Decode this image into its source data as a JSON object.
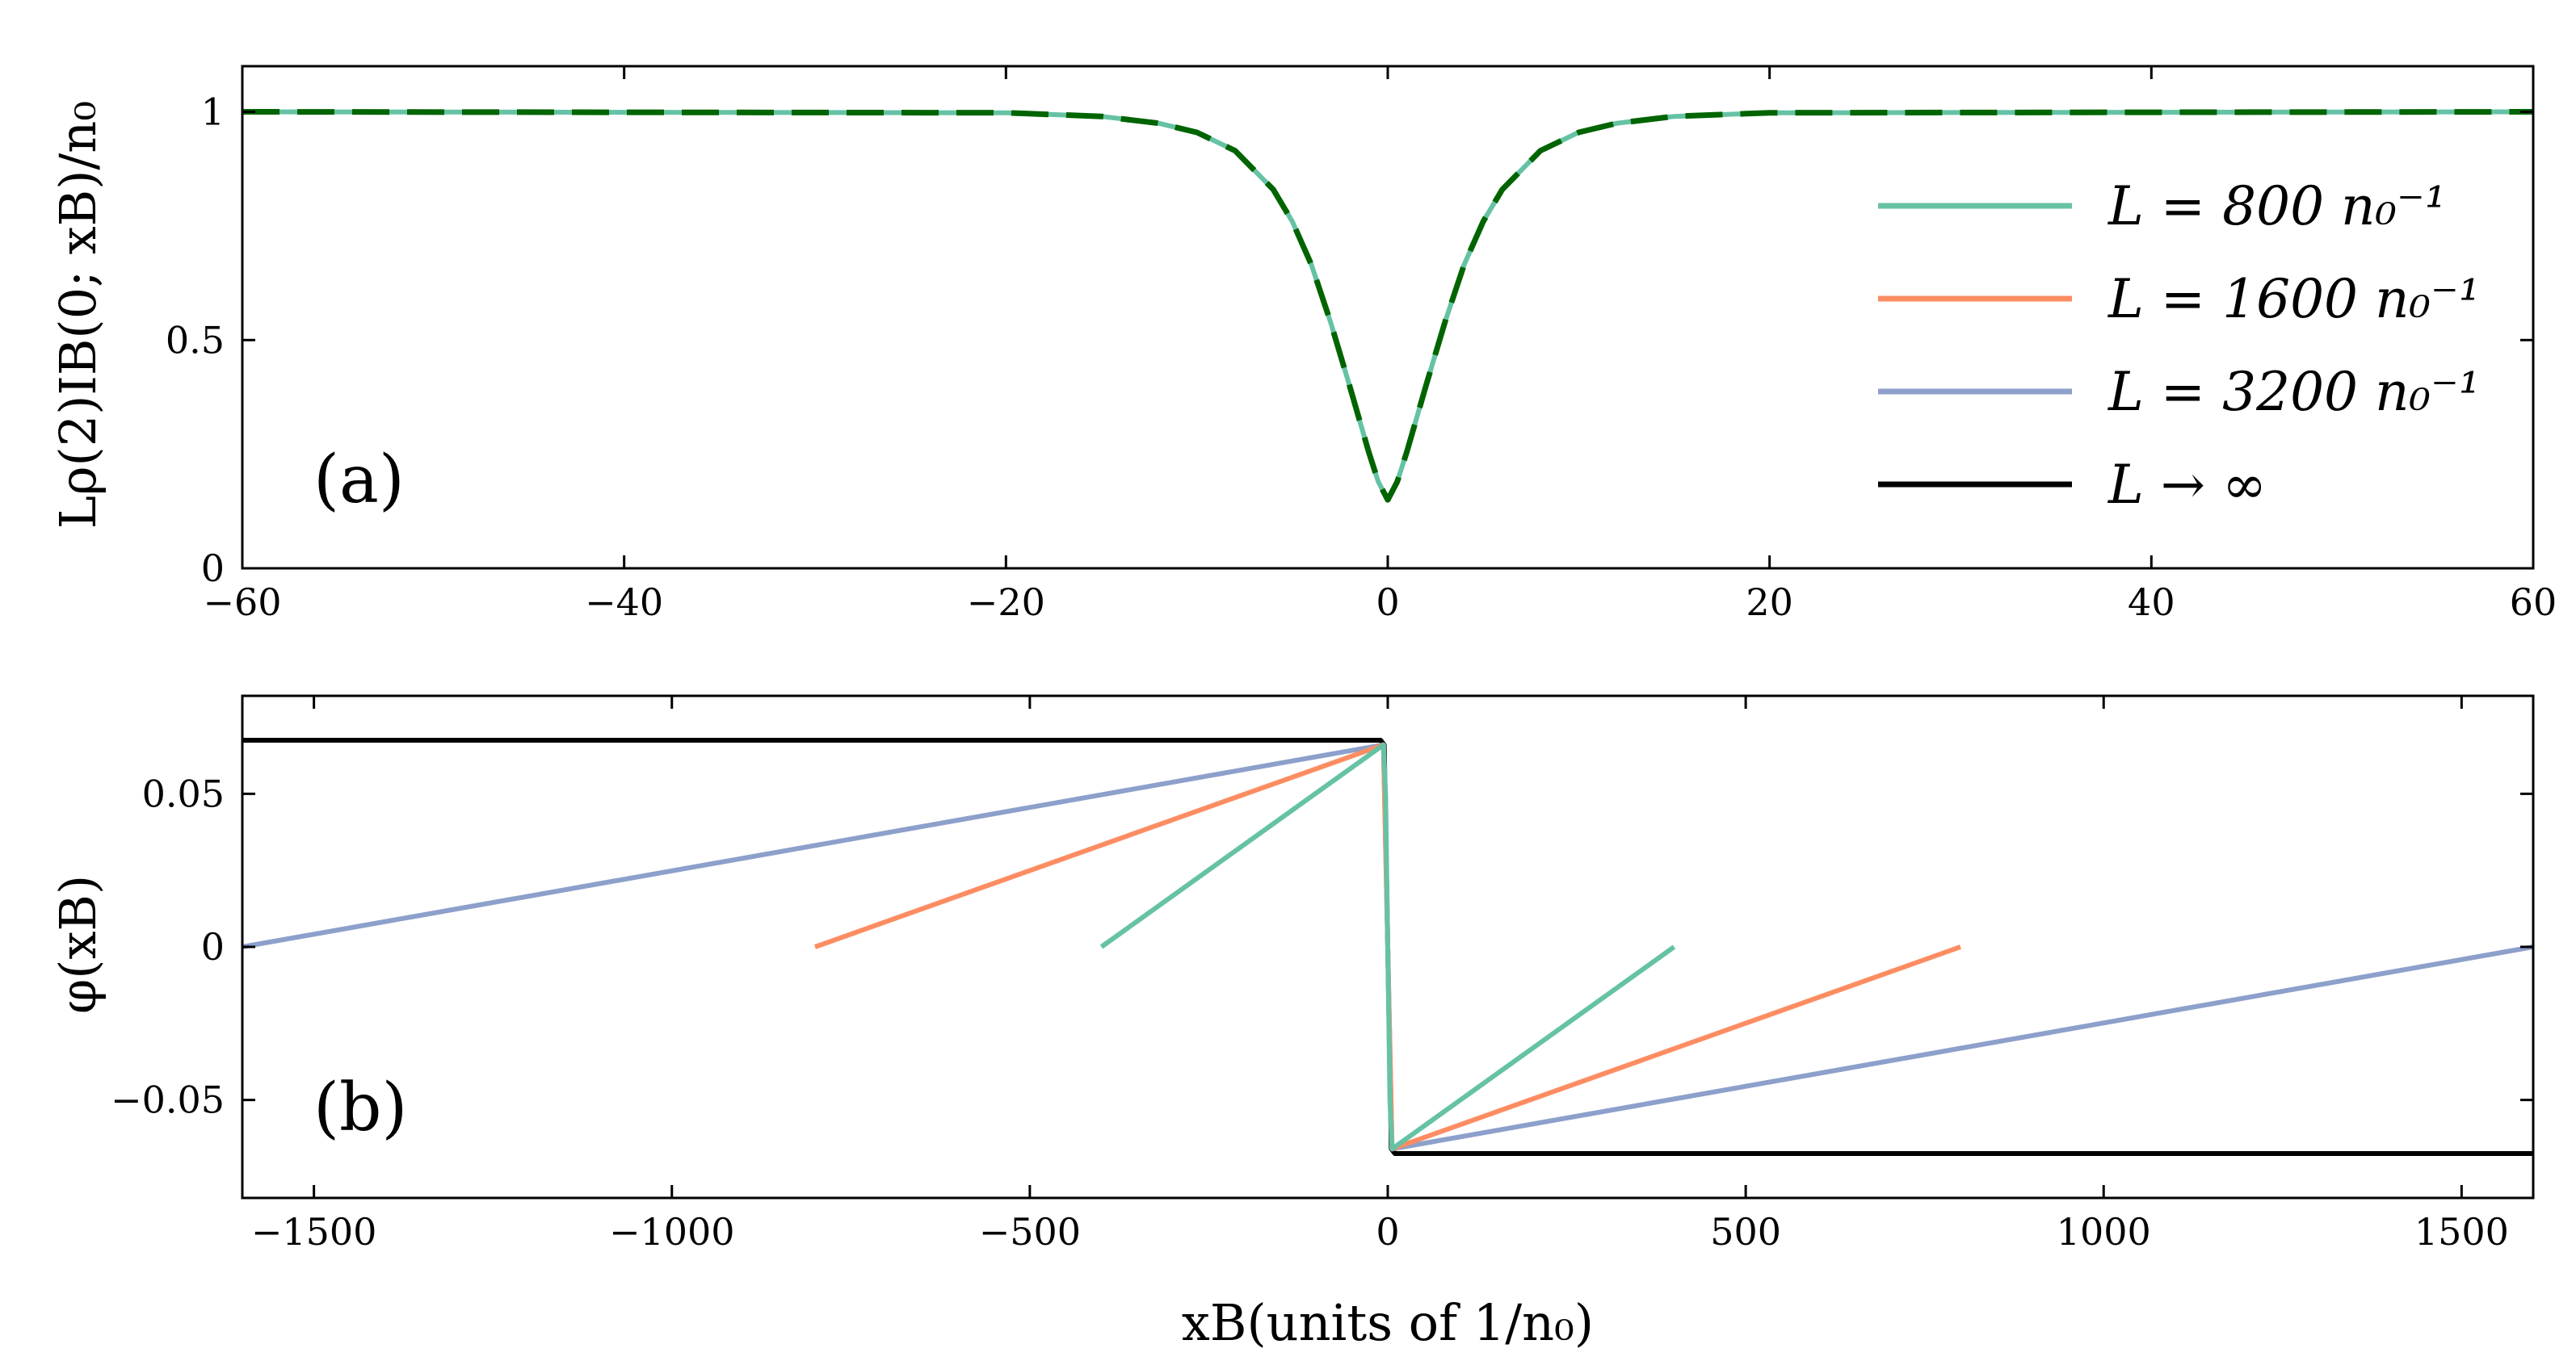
{
  "colors": {
    "L800": "#66c2a5",
    "L1600": "#fc8d62",
    "L3200": "#8da0cb",
    "Linf": "#000000",
    "dashed": "#006400"
  },
  "legend": [
    {
      "key": "L800",
      "label": "L = 800 n₀⁻¹"
    },
    {
      "key": "L1600",
      "label": "L = 1600 n₀⁻¹"
    },
    {
      "key": "L3200",
      "label": "L = 3200 n₀⁻¹"
    },
    {
      "key": "Linf",
      "label": "L → ∞"
    }
  ],
  "chart_data": [
    {
      "type": "line",
      "panel_label": "(a)",
      "ylabel": "Lρ(2)IB(0; xB)/n₀",
      "xlabel": "",
      "xlim": [
        -60,
        60
      ],
      "ylim": [
        0,
        1.1
      ],
      "xticks": [
        -60,
        -40,
        -20,
        0,
        20,
        40,
        60
      ],
      "xtick_labels": [
        "−60",
        "−40",
        "−20",
        "0",
        "20",
        "40",
        "60"
      ],
      "yticks": [
        0,
        0.5,
        1
      ],
      "ytick_labels": [
        "0",
        "0.5",
        "1"
      ],
      "series": [
        {
          "name": "L = 800 n₀⁻¹",
          "color_key": "L800",
          "x": [
            -60,
            -20,
            -15,
            -12,
            -10,
            -8,
            -6,
            -5,
            -4,
            -3,
            -2,
            -1,
            -0.5,
            0,
            0.5,
            1,
            2,
            3,
            4,
            5,
            6,
            8,
            10,
            12,
            15,
            20,
            60
          ],
          "y": [
            1.0,
            0.998,
            0.99,
            0.975,
            0.955,
            0.915,
            0.83,
            0.76,
            0.665,
            0.54,
            0.4,
            0.255,
            0.19,
            0.15,
            0.19,
            0.255,
            0.4,
            0.54,
            0.665,
            0.76,
            0.83,
            0.915,
            0.955,
            0.975,
            0.99,
            0.998,
            1.0
          ]
        },
        {
          "name": "L → ∞ (dashed)",
          "color_key": "dashed",
          "dashed": true,
          "x": [
            -60,
            -20,
            -15,
            -12,
            -10,
            -8,
            -6,
            -5,
            -4,
            -3,
            -2,
            -1,
            -0.5,
            0,
            0.5,
            1,
            2,
            3,
            4,
            5,
            6,
            8,
            10,
            12,
            15,
            20,
            60
          ],
          "y": [
            1.0,
            0.998,
            0.99,
            0.975,
            0.955,
            0.915,
            0.83,
            0.76,
            0.665,
            0.54,
            0.4,
            0.255,
            0.19,
            0.15,
            0.19,
            0.255,
            0.4,
            0.54,
            0.665,
            0.76,
            0.83,
            0.915,
            0.955,
            0.975,
            0.99,
            0.998,
            1.0
          ]
        }
      ]
    },
    {
      "type": "line",
      "panel_label": "(b)",
      "ylabel": "φ(xB)",
      "xlabel": "xB(units of 1/n₀)",
      "xlim": [
        -1600,
        1600
      ],
      "ylim": [
        -0.082,
        0.082
      ],
      "xticks": [
        -1500,
        -1000,
        -500,
        0,
        500,
        1000,
        1500
      ],
      "xtick_labels": [
        "−1500",
        "−1000",
        "−500",
        "0",
        "500",
        "1000",
        "1500"
      ],
      "yticks": [
        -0.05,
        0,
        0.05
      ],
      "ytick_labels": [
        "−0.05",
        "0",
        "0.05"
      ],
      "series": [
        {
          "name": "L → ∞",
          "color_key": "Linf",
          "x": [
            -1600,
            -10,
            -5,
            0,
            5,
            10,
            1600
          ],
          "y": [
            0.0675,
            0.0675,
            0.066,
            0,
            -0.066,
            -0.0675,
            -0.0675
          ]
        },
        {
          "name": "L = 3200 n₀⁻¹",
          "color_key": "L3200",
          "x": [
            -1600,
            -6,
            0,
            6,
            1600
          ],
          "y": [
            0,
            0.066,
            0,
            -0.066,
            0
          ]
        },
        {
          "name": "L = 1600 n₀⁻¹",
          "color_key": "L1600",
          "x": [
            -800,
            -6,
            0,
            6,
            800
          ],
          "y": [
            0,
            0.066,
            0,
            -0.066,
            0
          ]
        },
        {
          "name": "L = 800 n₀⁻¹",
          "color_key": "L800",
          "x": [
            -400,
            -6,
            -3,
            0,
            3,
            6,
            400
          ],
          "y": [
            0,
            0.066,
            0.05,
            0,
            -0.05,
            -0.066,
            0
          ]
        }
      ]
    }
  ]
}
